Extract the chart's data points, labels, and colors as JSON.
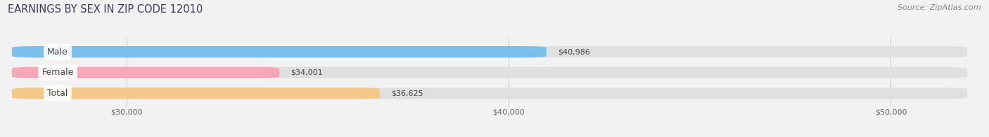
{
  "title": "EARNINGS BY SEX IN ZIP CODE 12010",
  "source": "Source: ZipAtlas.com",
  "categories": [
    "Male",
    "Female",
    "Total"
  ],
  "values": [
    40986,
    34001,
    36625
  ],
  "bar_colors": [
    "#7bbfea",
    "#f4a7b9",
    "#f5c98a"
  ],
  "value_labels": [
    "$40,986",
    "$34,001",
    "$36,625"
  ],
  "xmin": 27000,
  "xmax": 52000,
  "xticks": [
    30000,
    40000,
    50000
  ],
  "xtick_labels": [
    "$30,000",
    "$40,000",
    "$50,000"
  ],
  "bar_height": 0.55,
  "bg_bar_color": "#e0e0e0",
  "title_color": "#3a3a5c",
  "source_color": "#888888",
  "label_text_color": "#444444",
  "title_fontsize": 10.5,
  "source_fontsize": 8,
  "tick_fontsize": 8,
  "bar_label_fontsize": 8,
  "category_fontsize": 9,
  "fig_bg_color": "#f2f2f2"
}
